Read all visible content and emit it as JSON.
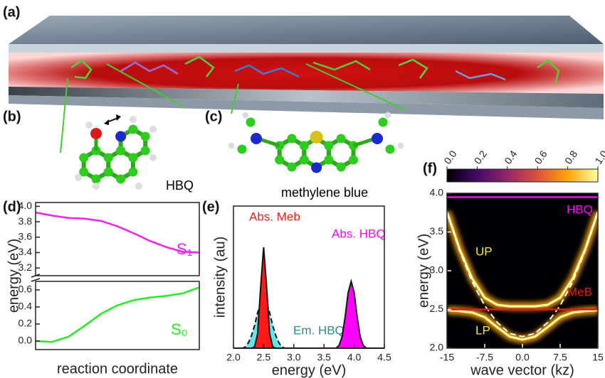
{
  "panels": {
    "a": {
      "label": "(a)"
    },
    "b": {
      "label": "(b)",
      "molecule": "HBQ"
    },
    "c": {
      "label": "(c)",
      "molecule": "methylene blue"
    }
  },
  "chart_data": [
    {
      "panel": "(d)",
      "type": "line",
      "xlim": [
        0,
        1
      ],
      "ylim": [
        3.1,
        4.05
      ],
      "yticks": [
        3.2,
        3.4,
        3.6,
        3.8,
        {
          "value": 4,
          "label": "4.0"
        }
      ],
      "x": [
        0,
        0.1,
        0.2,
        0.3,
        0.4,
        0.5,
        0.6,
        0.7,
        0.8,
        0.9,
        1
      ],
      "series": [
        {
          "name": "S₁",
          "color": "#ee22ee",
          "values": [
            3.92,
            3.88,
            3.85,
            3.84,
            3.81,
            3.74,
            3.65,
            3.55,
            3.47,
            3.41,
            3.4
          ]
        }
      ]
    },
    {
      "type": "line",
      "xlabel": "reaction coordinate",
      "ylabel": "energy (eV)",
      "xlim": [
        0,
        1
      ],
      "ylim": [
        -0.1,
        0.7
      ],
      "yticks": [
        {
          "value": 0,
          "label": "0.0"
        },
        0.2,
        0.4,
        0.6
      ],
      "x": [
        0,
        0.1,
        0.2,
        0.3,
        0.4,
        0.5,
        0.6,
        0.7,
        0.8,
        0.9,
        1
      ],
      "series": [
        {
          "name": "S₀",
          "color": "#22ee22",
          "values": [
            0,
            -0.01,
            0.05,
            0.18,
            0.32,
            0.42,
            0.48,
            0.51,
            0.53,
            0.56,
            0.63
          ]
        }
      ]
    },
    {
      "panel": "(e)",
      "type": "area",
      "xlabel": "energy (eV)",
      "ylabel": "intensity (au)",
      "xlim": [
        2,
        4.5
      ],
      "ylim": [
        0,
        1
      ],
      "xticks": [
        {
          "value": 2,
          "label": "2.0"
        },
        2.5,
        {
          "value": 3,
          "label": "3.0"
        },
        3.5,
        {
          "value": 4,
          "label": "4.0"
        },
        4.5
      ],
      "x": [
        2,
        2.05,
        2.1,
        2.15,
        2.2,
        2.25,
        2.3,
        2.35,
        2.4,
        2.45,
        2.5,
        2.55,
        2.6,
        2.65,
        2.7,
        2.75,
        2.8,
        2.85,
        2.9,
        2.95,
        3,
        3.05,
        3.1,
        3.15,
        3.2,
        3.25,
        3.3,
        3.35,
        3.4,
        3.45,
        3.5,
        3.55,
        3.6,
        3.65,
        3.7,
        3.75,
        3.8,
        3.85,
        3.9,
        3.95,
        4,
        4.05,
        4.1,
        4.15,
        4.2,
        4.25,
        4.3,
        4.35,
        4.4,
        4.45,
        4.5
      ],
      "series": [
        {
          "name": "Em. HBQ",
          "color": "#62e6ee",
          "label_color": "#2a8c8c",
          "dashed": true,
          "values": [
            0,
            0,
            0,
            0,
            0.01,
            0.04,
            0.09,
            0.16,
            0.25,
            0.32,
            0.35,
            0.32,
            0.25,
            0.16,
            0.09,
            0.04,
            0.01,
            0,
            0,
            0,
            0,
            0,
            0,
            0,
            0,
            0,
            0,
            0,
            0,
            0,
            0,
            0,
            0,
            0,
            0,
            0,
            0,
            0,
            0,
            0,
            0,
            0,
            0,
            0,
            0,
            0,
            0,
            0,
            0,
            0,
            0
          ]
        },
        {
          "name": "Abs. Meb",
          "color": "#ff1a1a",
          "label_color": "#ff1a1a",
          "dashed": false,
          "values": [
            0,
            0,
            0,
            0,
            0,
            0,
            0,
            0.01,
            0.1,
            0.43,
            0.71,
            0.43,
            0.1,
            0.01,
            0,
            0,
            0,
            0,
            0,
            0,
            0,
            0,
            0,
            0,
            0,
            0,
            0,
            0,
            0,
            0,
            0,
            0,
            0,
            0,
            0,
            0,
            0,
            0,
            0,
            0,
            0,
            0,
            0,
            0,
            0,
            0,
            0,
            0,
            0,
            0,
            0
          ]
        },
        {
          "name": "Abs. HBQ",
          "color": "#ff00ff",
          "label_color": "#ff00ff",
          "dashed": false,
          "values": [
            0,
            0,
            0,
            0,
            0,
            0,
            0,
            0,
            0,
            0,
            0,
            0,
            0,
            0,
            0,
            0,
            0,
            0,
            0,
            0,
            0,
            0,
            0,
            0,
            0,
            0,
            0,
            0,
            0,
            0,
            0,
            0,
            0,
            0,
            0,
            0.02,
            0.08,
            0.22,
            0.39,
            0.47,
            0.39,
            0.22,
            0.08,
            0.02,
            0,
            0,
            0,
            0,
            0,
            0,
            0
          ]
        }
      ]
    },
    {
      "panel": "(f)",
      "type": "heatmap",
      "xlabel": "wave vector (kz)",
      "ylabel": "energy (eV)",
      "xlim": [
        -15,
        15
      ],
      "ylim": [
        2,
        4
      ],
      "xticks": [
        -15,
        -7.5,
        {
          "value": 0,
          "label": "0.0"
        },
        7.5,
        15
      ],
      "yticks": [
        {
          "value": 2,
          "label": "2.0"
        },
        2.5,
        {
          "value": 3,
          "label": "3.0"
        },
        3.5,
        {
          "value": 4,
          "label": "4.0"
        }
      ],
      "colorbar": {
        "lim": [
          0,
          1
        ],
        "ticks": [
          {
            "value": 0,
            "label": "0.0"
          },
          0.2,
          0.4,
          0.6,
          0.8,
          {
            "value": 1,
            "label": "1.0"
          }
        ],
        "colors": [
          "#000004",
          "#420a68",
          "#932667",
          "#dd513a",
          "#fca50a",
          "#fcffa4"
        ]
      },
      "x": [
        -15,
        -12.5,
        -10,
        -7.5,
        -5,
        -2.5,
        0,
        2.5,
        5,
        7.5,
        10,
        12.5,
        15
      ],
      "series": [
        {
          "name": "UP",
          "color": "#fca50a",
          "label_color": "#f4ea2a",
          "values": [
            3.76,
            3.28,
            2.9,
            2.65,
            2.56,
            2.54,
            2.54,
            2.54,
            2.56,
            2.65,
            2.9,
            3.28,
            3.76
          ]
        },
        {
          "name": "LP",
          "color": "#fca50a",
          "label_color": "#f4ea2a",
          "values": [
            2.49,
            2.48,
            2.46,
            2.4,
            2.27,
            2.15,
            2.11,
            2.15,
            2.27,
            2.4,
            2.46,
            2.48,
            2.49
          ]
        }
      ],
      "cavity_mode": {
        "color": "#ffffff",
        "values": [
          3.75,
          3.26,
          2.86,
          2.55,
          2.33,
          2.19,
          2.15,
          2.19,
          2.33,
          2.55,
          2.86,
          3.26,
          3.75
        ]
      },
      "hlines": [
        {
          "label": "HBQ",
          "value": 3.95,
          "color": "#ff00ff"
        },
        {
          "label": "MeB",
          "value": 2.5,
          "color": "#e8161b"
        }
      ]
    }
  ]
}
